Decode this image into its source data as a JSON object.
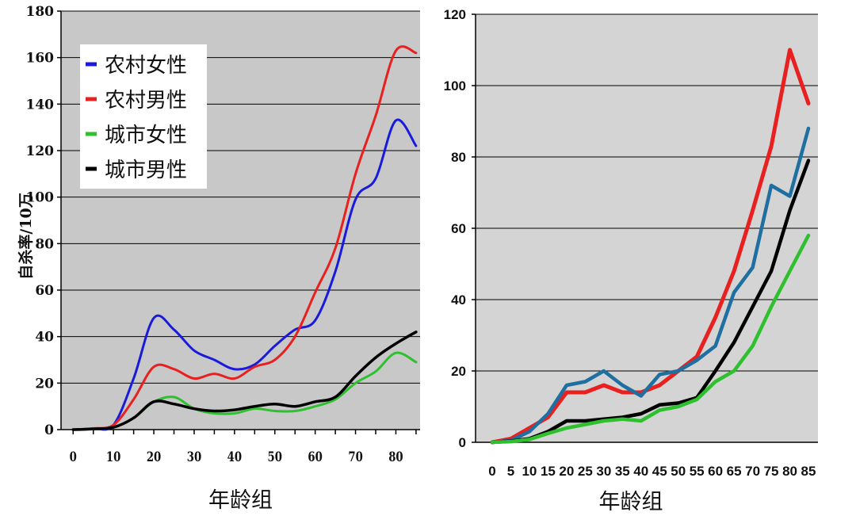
{
  "chart_data": [
    {
      "type": "line",
      "title": "",
      "xlabel": "年龄组",
      "ylabel": "自杀率/10万",
      "xlim": [
        -3,
        86
      ],
      "ylim": [
        0,
        180
      ],
      "x_ticks": [
        "0",
        "10",
        "20",
        "30",
        "40",
        "50",
        "60",
        "70",
        "80"
      ],
      "y_ticks": [
        "0",
        "20",
        "40",
        "60",
        "80",
        "100",
        "120",
        "140",
        "160",
        "180"
      ],
      "grid": "horizontal",
      "legend_position": "top-left",
      "x": [
        0,
        5,
        10,
        15,
        20,
        25,
        30,
        35,
        40,
        45,
        50,
        55,
        60,
        65,
        70,
        75,
        80,
        85
      ],
      "series": [
        {
          "name": "农村女性",
          "color": "#1a1adc",
          "values": [
            0,
            0.5,
            2,
            22,
            48,
            43,
            34,
            30,
            26,
            28,
            36,
            43,
            47,
            68,
            99,
            108,
            133,
            122
          ]
        },
        {
          "name": "农村男性",
          "color": "#e82020",
          "values": [
            0,
            0.5,
            2,
            13,
            27,
            26,
            22,
            24,
            22,
            27,
            30,
            40,
            59,
            78,
            110,
            135,
            163,
            162
          ]
        },
        {
          "name": "城市女性",
          "color": "#2ec02e",
          "values": [
            0,
            0.3,
            1,
            5,
            12,
            14,
            9,
            7,
            7,
            9,
            8,
            8,
            10,
            13,
            20,
            25,
            33,
            29
          ]
        },
        {
          "name": "城市男性",
          "color": "#000000",
          "values": [
            0,
            0.3,
            1,
            5,
            12,
            11,
            9,
            8,
            8.5,
            10,
            11,
            10,
            12,
            14,
            23,
            31,
            37,
            42
          ]
        }
      ]
    },
    {
      "type": "line",
      "title": "",
      "xlabel": "年龄组",
      "ylabel": "",
      "xlim": [
        0,
        85
      ],
      "ylim": [
        0,
        120
      ],
      "x_ticks": [
        "0",
        "5",
        "10",
        "15",
        "20",
        "25",
        "30",
        "35",
        "40",
        "45",
        "50",
        "55",
        "60",
        "65",
        "70",
        "75",
        "80",
        "85"
      ],
      "y_ticks": [
        "0",
        "20",
        "40",
        "60",
        "80",
        "100",
        "120"
      ],
      "grid": "horizontal",
      "x": [
        0,
        5,
        10,
        15,
        20,
        25,
        30,
        35,
        40,
        45,
        50,
        55,
        60,
        65,
        70,
        75,
        80,
        85
      ],
      "series": [
        {
          "color": "#e82020",
          "values": [
            0,
            1,
            4,
            7,
            14,
            14,
            16,
            14,
            14,
            16,
            20,
            24,
            35,
            48,
            65,
            83,
            110,
            95
          ]
        },
        {
          "color": "#1f6fa0",
          "values": [
            0,
            0.5,
            3,
            8,
            16,
            17,
            20,
            16,
            13,
            19,
            20,
            23,
            27,
            42,
            49,
            72,
            69,
            88
          ]
        },
        {
          "color": "#000000",
          "values": [
            0,
            0.3,
            1,
            3,
            6,
            6,
            6.5,
            7,
            8,
            10.5,
            11,
            12.5,
            20,
            28,
            38,
            48,
            65,
            79
          ]
        },
        {
          "color": "#2ec02e",
          "values": [
            0,
            0.2,
            0.8,
            2.5,
            4,
            5,
            6,
            6.5,
            6,
            9,
            10,
            12,
            17,
            20,
            27,
            38,
            48,
            58
          ]
        }
      ]
    }
  ]
}
